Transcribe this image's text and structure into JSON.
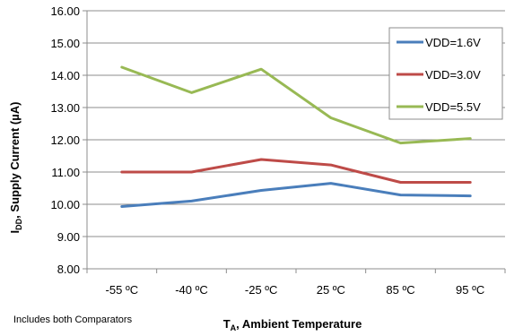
{
  "chart_data": {
    "type": "line",
    "categories": [
      "-55 ºC",
      "-40 ºC",
      "-25 ºC",
      "25 ºC",
      "85 ºC",
      "95 ºC"
    ],
    "series": [
      {
        "name": "VDD=1.6V",
        "color": "#4a7ebb",
        "values": [
          9.93,
          10.1,
          10.43,
          10.65,
          10.29,
          10.26
        ]
      },
      {
        "name": "VDD=3.0V",
        "color": "#be4b48",
        "values": [
          11.0,
          11.0,
          11.39,
          11.22,
          10.68,
          10.68
        ]
      },
      {
        "name": "VDD=5.5V",
        "color": "#98b954",
        "values": [
          14.25,
          13.46,
          14.19,
          12.68,
          11.9,
          12.04
        ]
      }
    ],
    "ylim": [
      8.0,
      16.0
    ],
    "yticks": [
      "8.00",
      "9.00",
      "10.00",
      "11.00",
      "12.00",
      "13.00",
      "14.00",
      "15.00",
      "16.00"
    ],
    "grid": true,
    "legend_position": "top-right",
    "ylabel": {
      "main": "I",
      "sub": "DD",
      "rest": ", Supply Current (µA)"
    },
    "xlabel": {
      "main": "T",
      "sub": "A",
      "rest": ", Ambient Temperature"
    },
    "note": "Includes both Comparators"
  }
}
